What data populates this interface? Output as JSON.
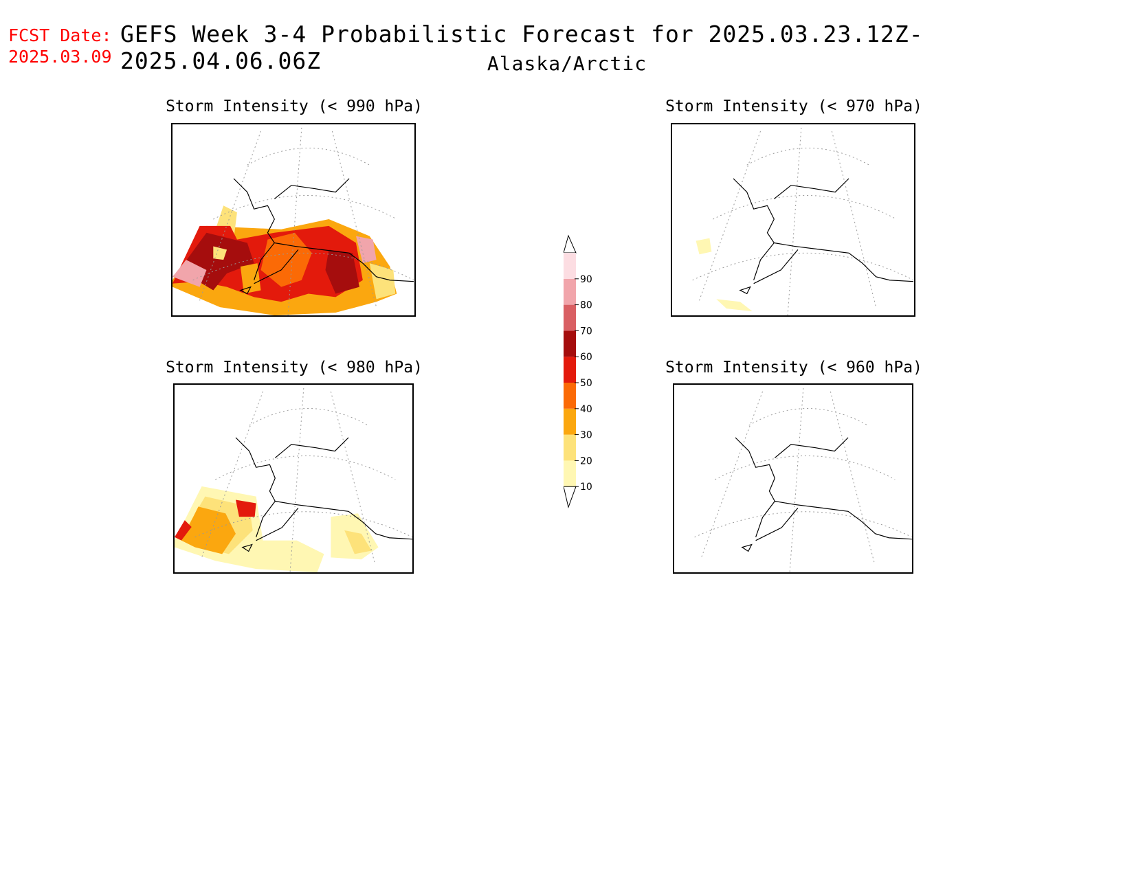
{
  "header": {
    "fcst_label": "FCST Date:",
    "fcst_date": "2025.03.09",
    "title": "GEFS Week 3-4 Probabilistic Forecast for 2025.03.23.12Z-2025.04.06.06Z",
    "subtitle": "Alaska/Arctic"
  },
  "panels": [
    {
      "title": "Storm Intensity (< 990 hPa)",
      "threshold_hpa": 990
    },
    {
      "title": "Storm Intensity (< 970 hPa)",
      "threshold_hpa": 970
    },
    {
      "title": "Storm Intensity (< 980 hPa)",
      "threshold_hpa": 980
    },
    {
      "title": "Storm Intensity (< 960 hPa)",
      "threshold_hpa": 960
    }
  ],
  "colorbar": {
    "levels": [
      "10",
      "20",
      "30",
      "40",
      "50",
      "60",
      "70",
      "80",
      "90"
    ],
    "colors": [
      "#fff7b3",
      "#fde27a",
      "#fba70f",
      "#fb6a06",
      "#e31a0c",
      "#a50d0d",
      "#d95f63",
      "#f1a5ab",
      "#fcdde2"
    ]
  }
}
